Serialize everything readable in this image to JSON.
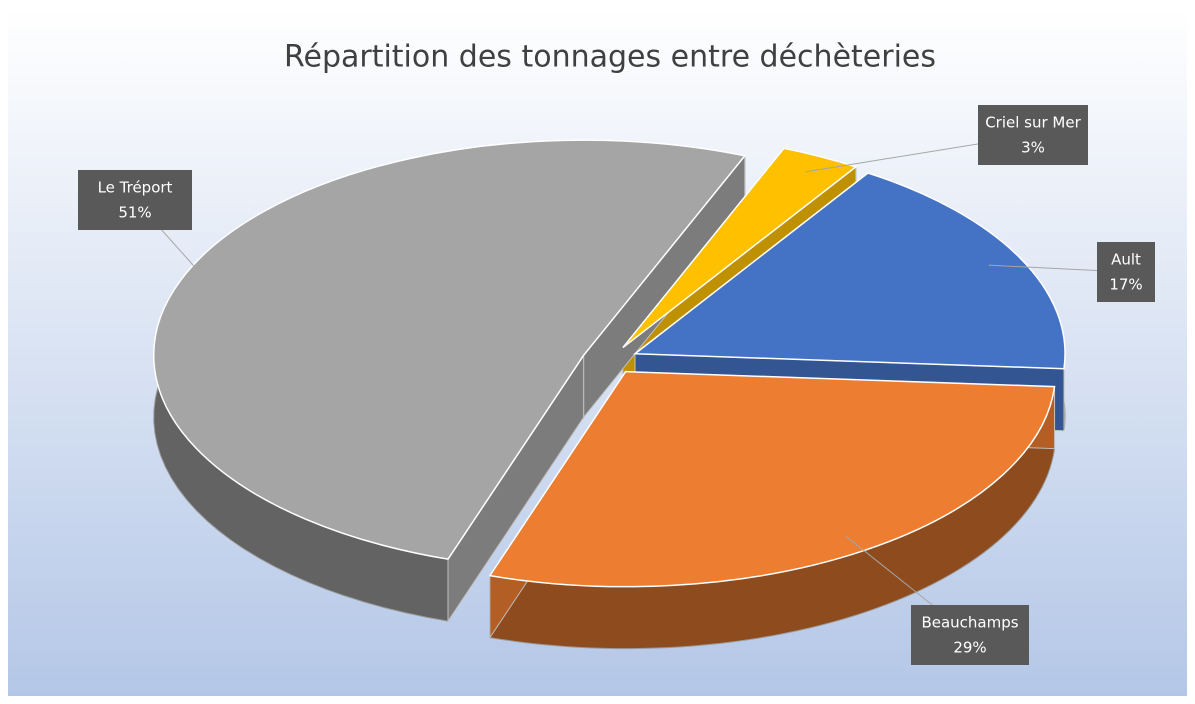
{
  "chart_data": {
    "type": "pie",
    "title": "Répartition des tonnages entre déchèteries",
    "categories": [
      "Criel sur Mer",
      "Ault",
      "Beauchamps",
      "Le Tréport"
    ],
    "values": [
      3,
      17,
      29,
      51
    ],
    "value_labels": [
      "3%",
      "17%",
      "29%",
      "51%"
    ],
    "colors": [
      "#ffc000",
      "#4472c4",
      "#ed7d31",
      "#a5a5a5"
    ]
  }
}
